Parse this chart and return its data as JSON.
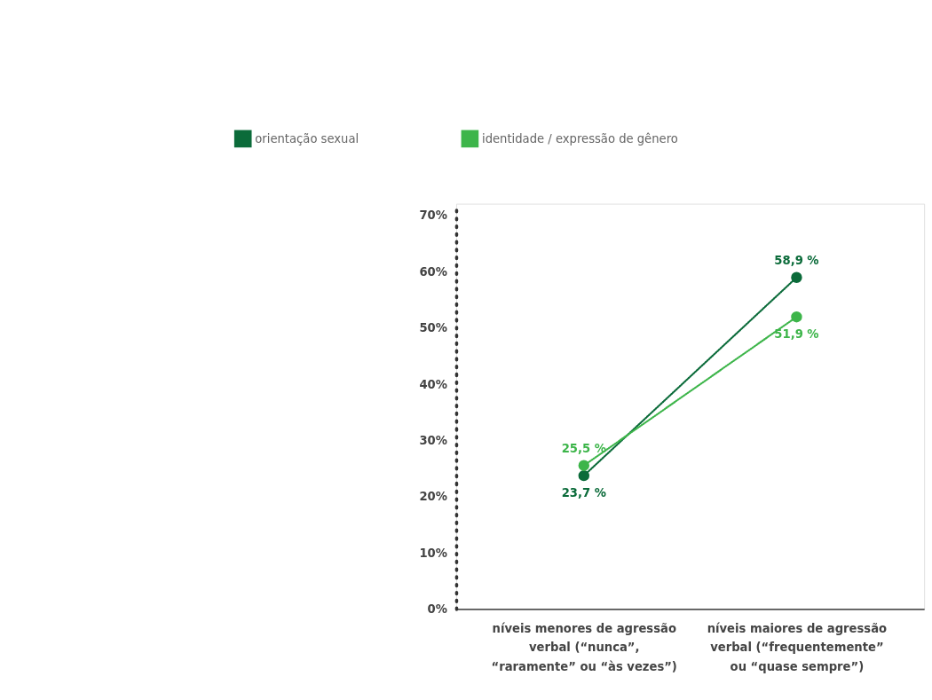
{
  "chart_data": {
    "type": "line",
    "categories": [
      "níveis menores de agressão verbal (“nunca”, “raramente” ou “às vezes”)",
      "níveis maiores de agressão verbal (“frequentemente” ou “quase sempre”)"
    ],
    "series": [
      {
        "name": "orientação sexual",
        "color": "#0b6b3a",
        "values": [
          23.7,
          58.9
        ],
        "value_labels": [
          "23,7 %",
          "58,9 %"
        ]
      },
      {
        "name": "identidade / expressão de gênero",
        "color": "#3db54a",
        "values": [
          25.5,
          51.9
        ],
        "value_labels": [
          "25,5 %",
          "51,9 %"
        ]
      }
    ],
    "ylim": [
      0,
      72
    ],
    "yticks": [
      {
        "value": 0,
        "label": "0%"
      },
      {
        "value": 10,
        "label": "10%"
      },
      {
        "value": 20,
        "label": "20%"
      },
      {
        "value": 30,
        "label": "30%"
      },
      {
        "value": 40,
        "label": "40%"
      },
      {
        "value": 50,
        "label": "50%"
      },
      {
        "value": 60,
        "label": "60%"
      },
      {
        "value": 70,
        "label": "70%"
      }
    ],
    "grid": false,
    "legend": "top left",
    "marker": "circle",
    "line_style": "dotted"
  }
}
